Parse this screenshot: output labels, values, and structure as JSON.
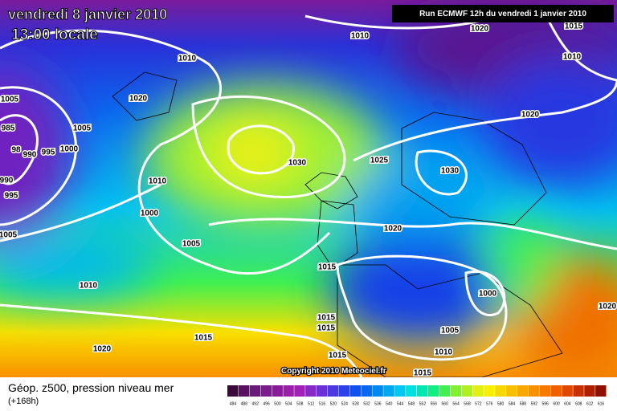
{
  "header": {
    "date": "vendredi 8 janvier 2010",
    "time": "13:00 locale",
    "run": "Run ECMWF 12h du vendredi 1 janvier 2010"
  },
  "map": {
    "isobar_labels": [
      "1010",
      "1020",
      "1015",
      "1010",
      "1010",
      "1020",
      "1005",
      "1005",
      "985",
      "98",
      "990",
      "995",
      "1000",
      "990",
      "995",
      "1005",
      "1010",
      "1000",
      "1005",
      "1010",
      "1020",
      "1015",
      "1030",
      "1025",
      "1030",
      "1020",
      "1020",
      "1015",
      "1000",
      "1015",
      "1015",
      "1005",
      "1010",
      "1015",
      "1015",
      "1020"
    ],
    "copyright": "Copyright 2010 Meteociel.fr"
  },
  "footer": {
    "title": "Géop. z500, pression niveau mer",
    "subtitle": "(+168h)",
    "scale_labels": [
      484,
      488,
      492,
      496,
      500,
      504,
      508,
      512,
      516,
      520,
      524,
      528,
      532,
      536,
      540,
      544,
      548,
      552,
      556,
      560,
      564,
      568,
      572,
      576,
      580,
      584,
      588,
      592,
      596,
      600,
      604,
      608,
      612,
      616
    ],
    "scale_colors": [
      "#3a0a3a",
      "#5a1060",
      "#6a1a7a",
      "#7a1c8c",
      "#8a1a9a",
      "#9a20aa",
      "#a020b8",
      "#8828c8",
      "#6a30d8",
      "#4a38e0",
      "#2a40e8",
      "#1050f0",
      "#0868f0",
      "#0088f0",
      "#00a8f0",
      "#00c8f0",
      "#00e0e0",
      "#00e8b0",
      "#10f080",
      "#40f050",
      "#80f030",
      "#b0f020",
      "#e0f010",
      "#f8f000",
      "#f8d800",
      "#f8c000",
      "#f8a800",
      "#f89000",
      "#f87800",
      "#f06000",
      "#e04800",
      "#c83000",
      "#b02000",
      "#901000"
    ]
  }
}
